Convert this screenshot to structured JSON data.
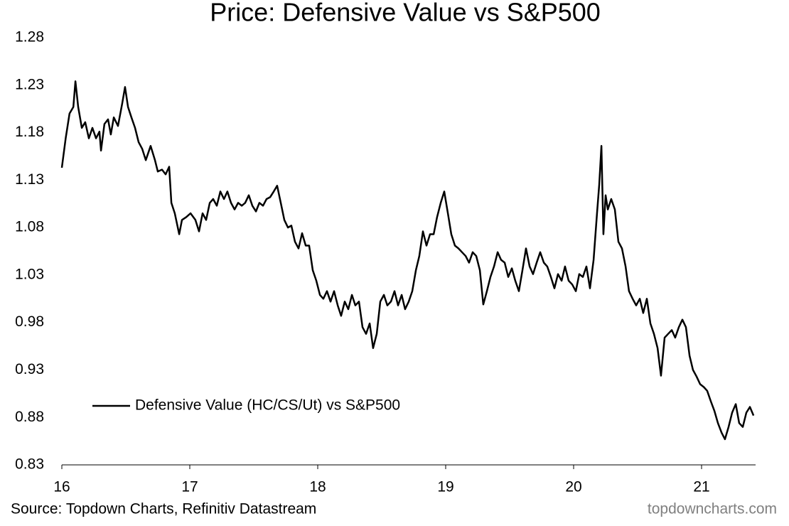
{
  "chart_data": {
    "type": "line",
    "title": "Price: Defensive Value vs S&P500",
    "source": "Source: Topdown Charts, Refinitiv Datastream",
    "watermark": "topdowncharts.com",
    "legend": "lower left",
    "xlim": [
      16,
      21.45
    ],
    "xticks": [
      16,
      17,
      18,
      19,
      20,
      21
    ],
    "ylim": [
      0.83,
      1.28
    ],
    "yticks": [
      0.83,
      0.88,
      0.93,
      0.98,
      1.03,
      1.08,
      1.13,
      1.18,
      1.23,
      1.28
    ],
    "x": [
      16.0,
      16.03,
      16.06,
      16.09,
      16.106,
      16.128,
      16.156,
      16.183,
      16.211,
      16.239,
      16.267,
      16.294,
      16.306,
      16.333,
      16.361,
      16.383,
      16.406,
      16.439,
      16.472,
      16.494,
      16.517,
      16.544,
      16.572,
      16.6,
      16.628,
      16.656,
      16.694,
      16.728,
      16.75,
      16.783,
      16.811,
      16.839,
      16.856,
      16.883,
      16.917,
      16.939,
      16.972,
      17.006,
      17.044,
      17.072,
      17.1,
      17.128,
      17.156,
      17.183,
      17.211,
      17.239,
      17.267,
      17.294,
      17.322,
      17.35,
      17.378,
      17.406,
      17.433,
      17.461,
      17.489,
      17.517,
      17.544,
      17.572,
      17.6,
      17.628,
      17.656,
      17.683,
      17.711,
      17.739,
      17.767,
      17.794,
      17.822,
      17.85,
      17.878,
      17.906,
      17.933,
      17.961,
      17.989,
      18.017,
      18.044,
      18.072,
      18.1,
      18.128,
      18.156,
      18.183,
      18.211,
      18.239,
      18.267,
      18.294,
      18.322,
      18.35,
      18.378,
      18.406,
      18.433,
      18.461,
      18.489,
      18.517,
      18.544,
      18.572,
      18.6,
      18.628,
      18.656,
      18.683,
      18.711,
      18.739,
      18.767,
      18.794,
      18.822,
      18.85,
      18.878,
      18.906,
      18.933,
      18.961,
      18.989,
      19.017,
      19.044,
      19.072,
      19.1,
      19.128,
      19.156,
      19.183,
      19.211,
      19.239,
      19.267,
      19.294,
      19.322,
      19.35,
      19.378,
      19.406,
      19.433,
      19.461,
      19.489,
      19.517,
      19.544,
      19.572,
      19.6,
      19.628,
      19.656,
      19.683,
      19.711,
      19.739,
      19.767,
      19.794,
      19.822,
      19.85,
      19.878,
      19.906,
      19.933,
      19.961,
      19.989,
      20.017,
      20.044,
      20.072,
      20.1,
      20.128,
      20.156,
      20.183,
      20.2,
      20.217,
      20.233,
      20.25,
      20.267,
      20.294,
      20.322,
      20.35,
      20.378,
      20.406,
      20.433,
      20.461,
      20.489,
      20.517,
      20.544,
      20.572,
      20.6,
      20.628,
      20.656,
      20.683,
      20.711,
      20.739,
      20.767,
      20.794,
      20.822,
      20.85,
      20.878,
      20.906,
      20.933,
      20.961,
      20.989,
      21.017,
      21.044,
      21.072,
      21.1,
      21.128,
      21.156,
      21.183,
      21.211,
      21.239,
      21.267,
      21.294,
      21.322,
      21.35,
      21.378,
      21.406
    ],
    "series": [
      {
        "name": "Defensive Value (HC/CS/Ut) vs S&P500",
        "color": "#000000",
        "values": [
          1.143,
          1.174,
          1.2,
          1.207,
          1.234,
          1.207,
          1.185,
          1.191,
          1.174,
          1.185,
          1.174,
          1.181,
          1.161,
          1.189,
          1.194,
          1.178,
          1.196,
          1.187,
          1.211,
          1.228,
          1.207,
          1.196,
          1.185,
          1.17,
          1.163,
          1.151,
          1.166,
          1.151,
          1.139,
          1.141,
          1.136,
          1.144,
          1.106,
          1.095,
          1.073,
          1.088,
          1.091,
          1.095,
          1.088,
          1.076,
          1.095,
          1.088,
          1.106,
          1.11,
          1.103,
          1.118,
          1.11,
          1.118,
          1.106,
          1.099,
          1.106,
          1.103,
          1.106,
          1.114,
          1.103,
          1.097,
          1.106,
          1.103,
          1.11,
          1.112,
          1.118,
          1.124,
          1.106,
          1.088,
          1.08,
          1.082,
          1.065,
          1.058,
          1.074,
          1.061,
          1.061,
          1.035,
          1.024,
          1.009,
          1.005,
          1.013,
          1.002,
          1.013,
          0.998,
          0.987,
          1.002,
          0.994,
          1.009,
          0.998,
          1.002,
          0.975,
          0.968,
          0.979,
          0.953,
          0.968,
          1.002,
          1.009,
          0.998,
          1.002,
          1.013,
          0.998,
          1.009,
          0.994,
          1.002,
          1.013,
          1.035,
          1.05,
          1.076,
          1.061,
          1.073,
          1.073,
          1.091,
          1.106,
          1.118,
          1.095,
          1.073,
          1.061,
          1.058,
          1.054,
          1.05,
          1.043,
          1.054,
          1.05,
          1.035,
          0.999,
          1.013,
          1.028,
          1.039,
          1.054,
          1.046,
          1.043,
          1.028,
          1.037,
          1.024,
          1.013,
          1.035,
          1.058,
          1.039,
          1.031,
          1.043,
          1.054,
          1.043,
          1.039,
          1.028,
          1.016,
          1.031,
          1.024,
          1.039,
          1.024,
          1.02,
          1.013,
          1.031,
          1.028,
          1.039,
          1.016,
          1.046,
          1.095,
          1.125,
          1.166,
          1.073,
          1.114,
          1.099,
          1.11,
          1.099,
          1.065,
          1.058,
          1.039,
          1.013,
          1.005,
          0.998,
          1.005,
          0.99,
          1.005,
          0.979,
          0.968,
          0.953,
          0.924,
          0.964,
          0.968,
          0.972,
          0.964,
          0.975,
          0.983,
          0.975,
          0.945,
          0.93,
          0.923,
          0.915,
          0.912,
          0.908,
          0.897,
          0.887,
          0.874,
          0.864,
          0.857,
          0.87,
          0.885,
          0.894,
          0.874,
          0.87,
          0.885,
          0.891,
          0.882
        ]
      }
    ]
  }
}
